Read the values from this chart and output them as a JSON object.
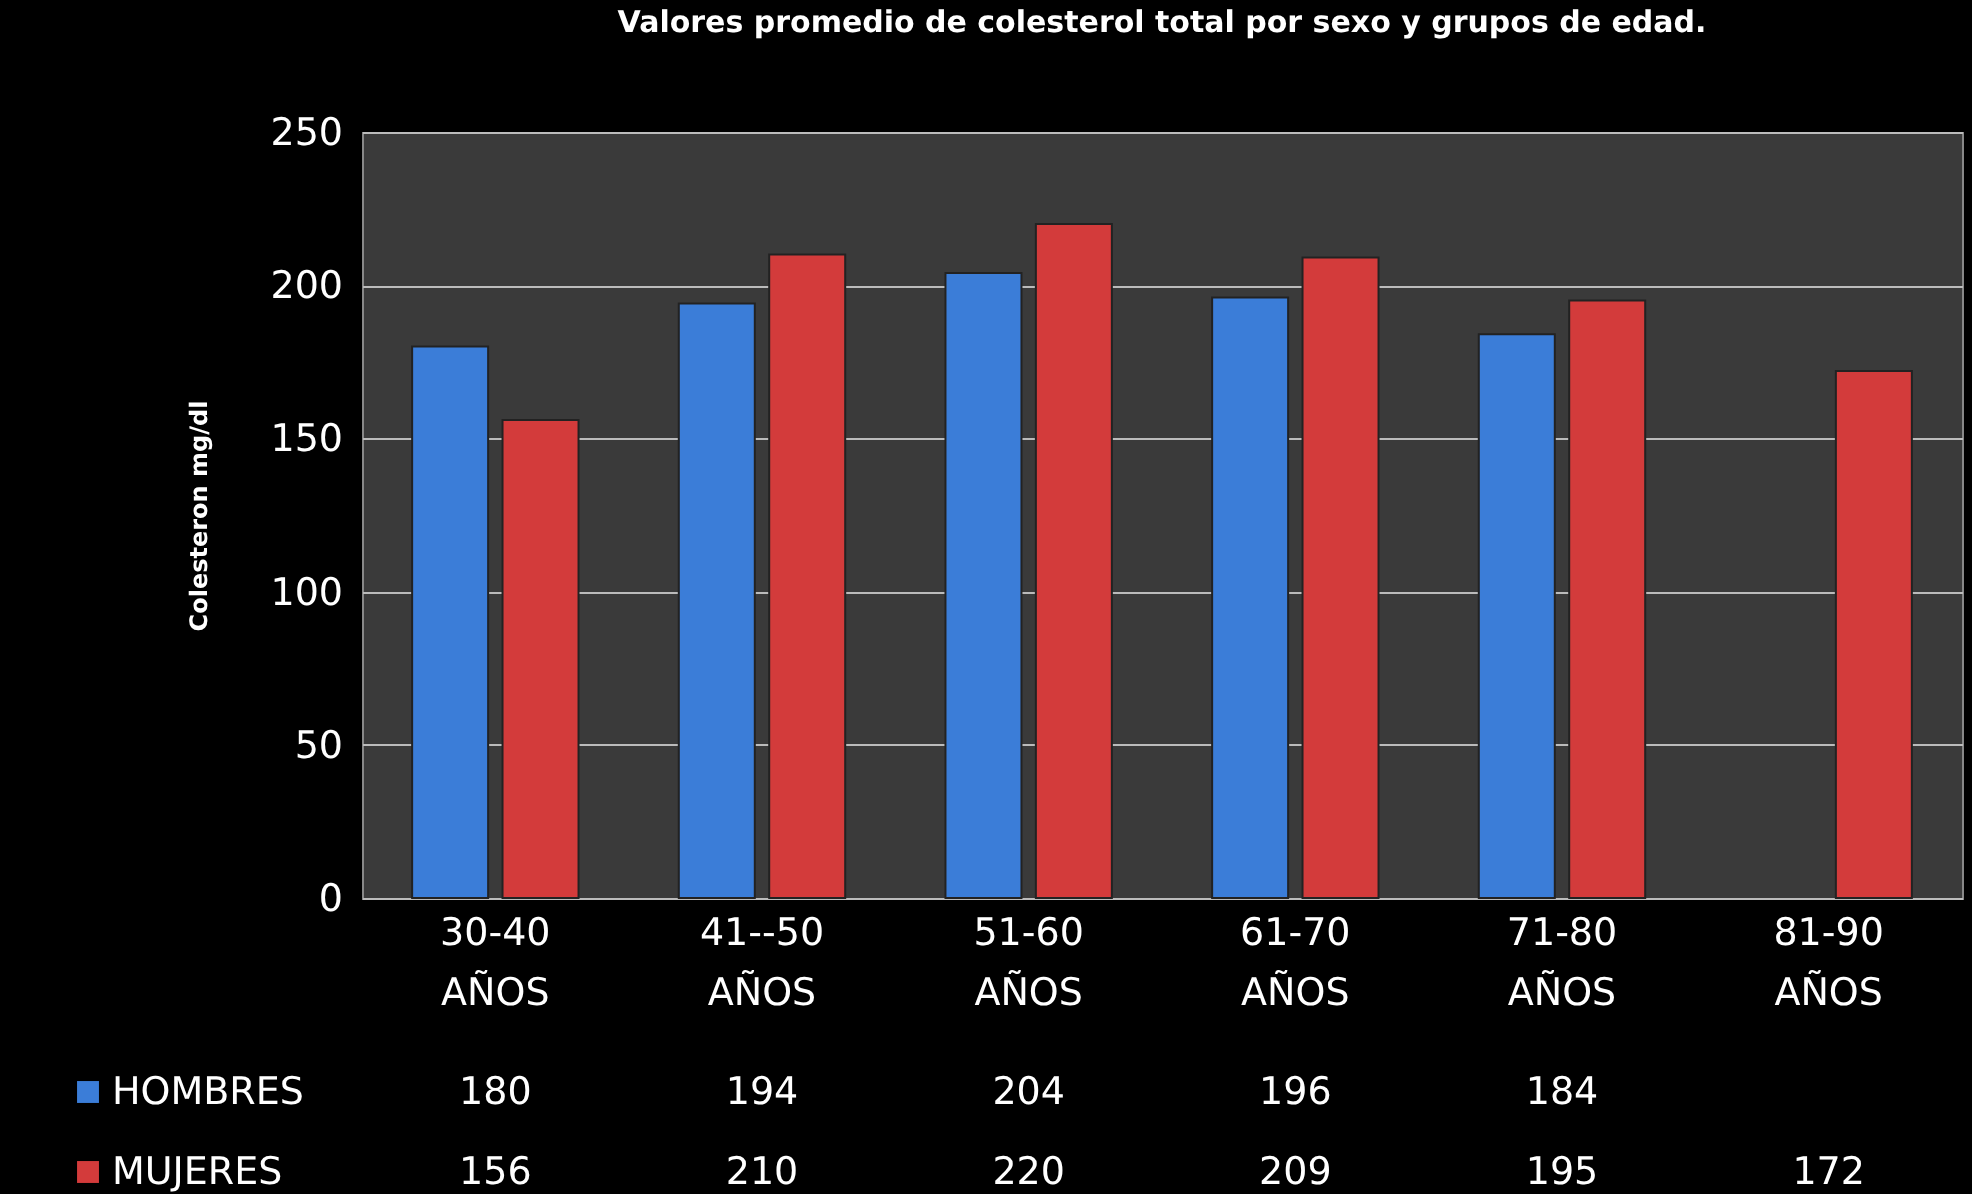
{
  "chart_data": {
    "type": "bar",
    "title": "Valores promedio de colesterol total por sexo y grupos de edad.",
    "ylabel": "Colesteron mg/dl",
    "categories": [
      "30-40 AÑOS",
      "41--50 AÑOS",
      "51-60 AÑOS",
      "61-70 AÑOS",
      "71-80 AÑOS",
      "81-90 AÑOS"
    ],
    "series": [
      {
        "name": "HOMBRES",
        "color": "#3b7dd8",
        "values": [
          180,
          194,
          204,
          196,
          184,
          null
        ]
      },
      {
        "name": "MUJERES",
        "color": "#d33b3b",
        "values": [
          156,
          210,
          220,
          209,
          195,
          172
        ]
      }
    ],
    "ylim": [
      0,
      250
    ],
    "yticks": [
      0,
      50,
      100,
      150,
      200,
      250
    ],
    "grid": "y",
    "legend": "bottom",
    "data_labels": true
  }
}
